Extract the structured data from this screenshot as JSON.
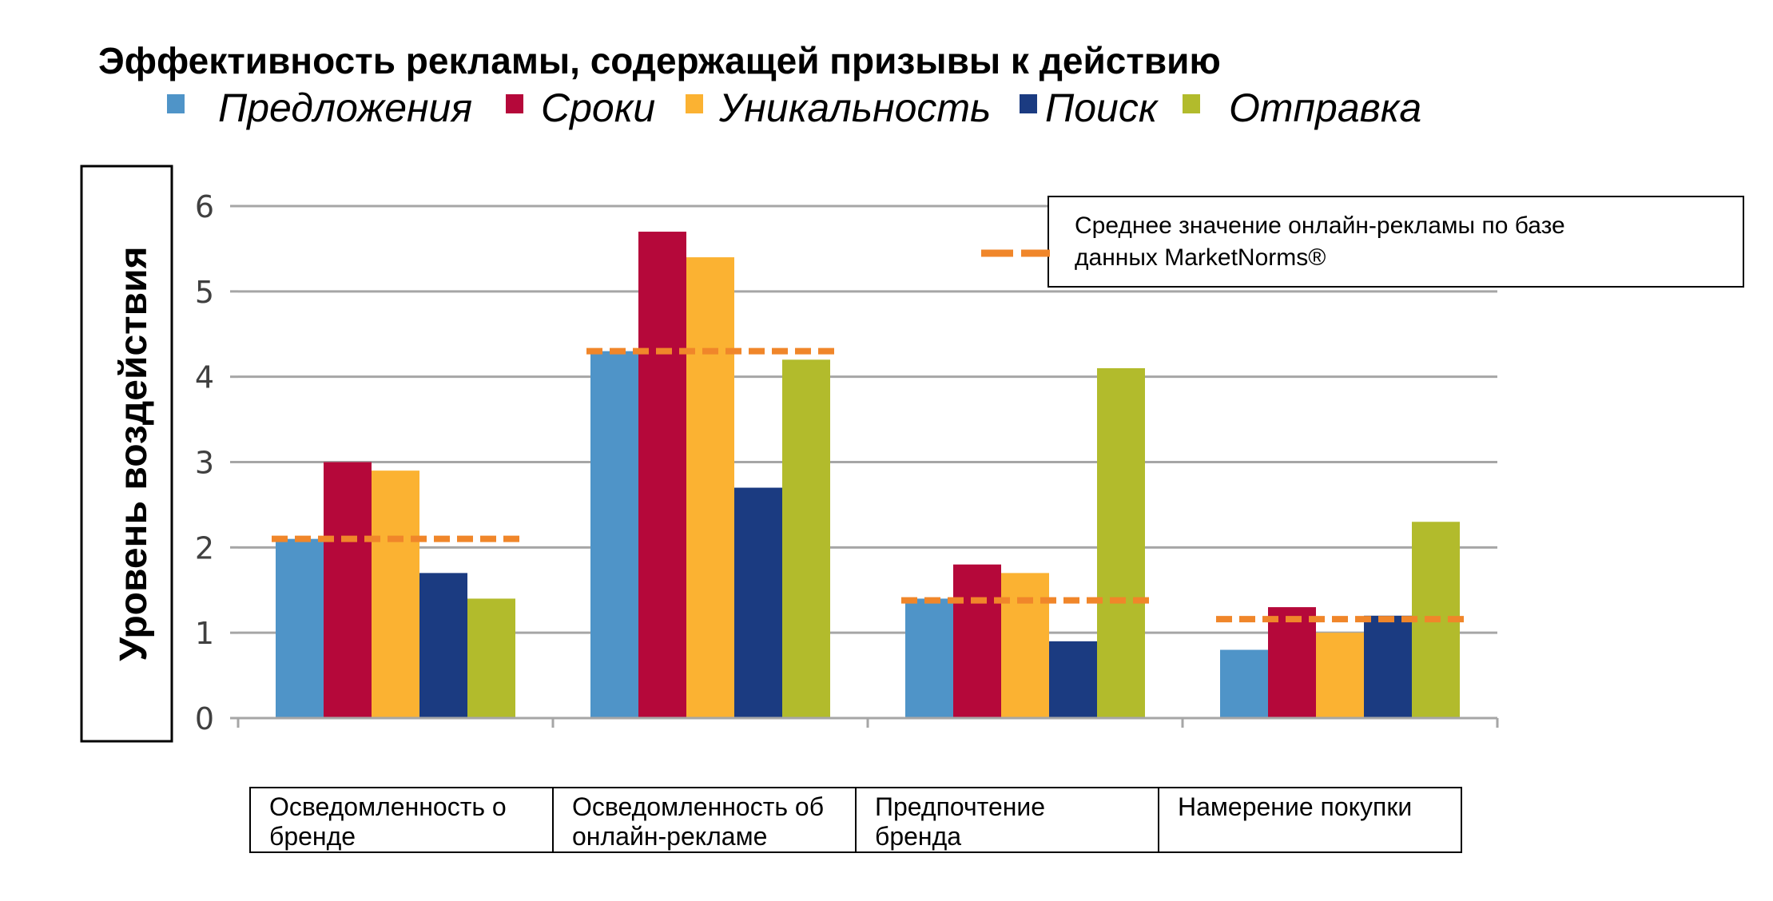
{
  "chart_data": {
    "type": "bar",
    "title": "Эффективность рекламы, содержащей призывы к действию",
    "ylabel": "Уровень воздействия",
    "xlabel": "",
    "ylim": [
      0,
      6
    ],
    "yticks": [
      0,
      1,
      2,
      3,
      4,
      5,
      6
    ],
    "grid": true,
    "legend_position": "top",
    "categories": [
      [
        "Осведомленность о",
        "бренде"
      ],
      [
        "Осведомленность об",
        "онлайн-рекламе"
      ],
      [
        "Предпочтение",
        "бренда"
      ],
      [
        "Намерение покупки"
      ]
    ],
    "series": [
      {
        "name": "Предложения",
        "color": "#4f94c8",
        "values": [
          2.1,
          4.3,
          1.4,
          0.8
        ]
      },
      {
        "name": "Сроки",
        "color": "#b5083a",
        "values": [
          3.0,
          5.7,
          1.8,
          1.3
        ]
      },
      {
        "name": "Уникальность",
        "color": "#fbb232",
        "values": [
          2.9,
          5.4,
          1.7,
          1.0
        ]
      },
      {
        "name": "Поиск",
        "color": "#1b3b81",
        "values": [
          1.7,
          2.7,
          0.9,
          1.2
        ]
      },
      {
        "name": "Отправка",
        "color": "#b2bb2c",
        "values": [
          1.4,
          4.2,
          4.1,
          2.3
        ]
      }
    ],
    "benchmark": {
      "label": [
        "Среднее значение онлайн-рекламы по базе",
        "данных MarketNorms®"
      ],
      "color": "#f0862a",
      "values": [
        2.1,
        4.3,
        1.38,
        1.16
      ]
    }
  }
}
